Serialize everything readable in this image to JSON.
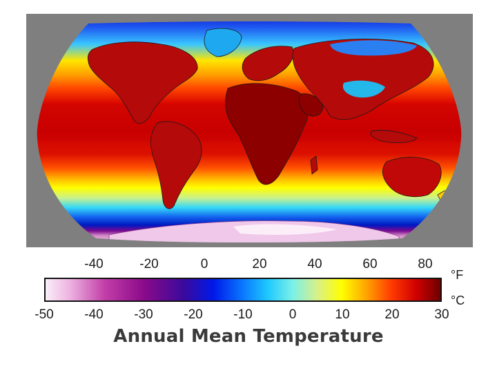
{
  "title": "Annual Mean Temperature",
  "background": "#7f7f7f",
  "scale": {
    "fahrenheit_unit": "°F",
    "celsius_unit": "°C",
    "fahrenheit_ticks": [
      "-40",
      "-20",
      "0",
      "20",
      "40",
      "60",
      "80"
    ],
    "celsius_ticks": [
      "-50",
      "-40",
      "-30",
      "-20",
      "-10",
      "0",
      "10",
      "20",
      "30"
    ],
    "celsius_range": [
      -50,
      30
    ],
    "colormap": [
      {
        "c": -50,
        "color": "#fbeef8"
      },
      {
        "c": -45,
        "color": "#ecb2e0"
      },
      {
        "c": -38,
        "color": "#c23ea8"
      },
      {
        "c": -30,
        "color": "#8a0a8a"
      },
      {
        "c": -22,
        "color": "#3a0a9c"
      },
      {
        "c": -16,
        "color": "#0018e8"
      },
      {
        "c": -10,
        "color": "#0a78ff"
      },
      {
        "c": -5,
        "color": "#1ec8ff"
      },
      {
        "c": 0,
        "color": "#7af0e8"
      },
      {
        "c": 5,
        "color": "#d8f08a"
      },
      {
        "c": 10,
        "color": "#ffff00"
      },
      {
        "c": 15,
        "color": "#ffa400"
      },
      {
        "c": 20,
        "color": "#ff3c00"
      },
      {
        "c": 25,
        "color": "#d10000"
      },
      {
        "c": 30,
        "color": "#6e0000"
      }
    ]
  },
  "map": {
    "projection": "Robinson",
    "land_color": "#b20808",
    "hot_land_color": "#8c0000",
    "cold_land_color": "#20b4e8",
    "border_color": "#1a1a1a"
  }
}
